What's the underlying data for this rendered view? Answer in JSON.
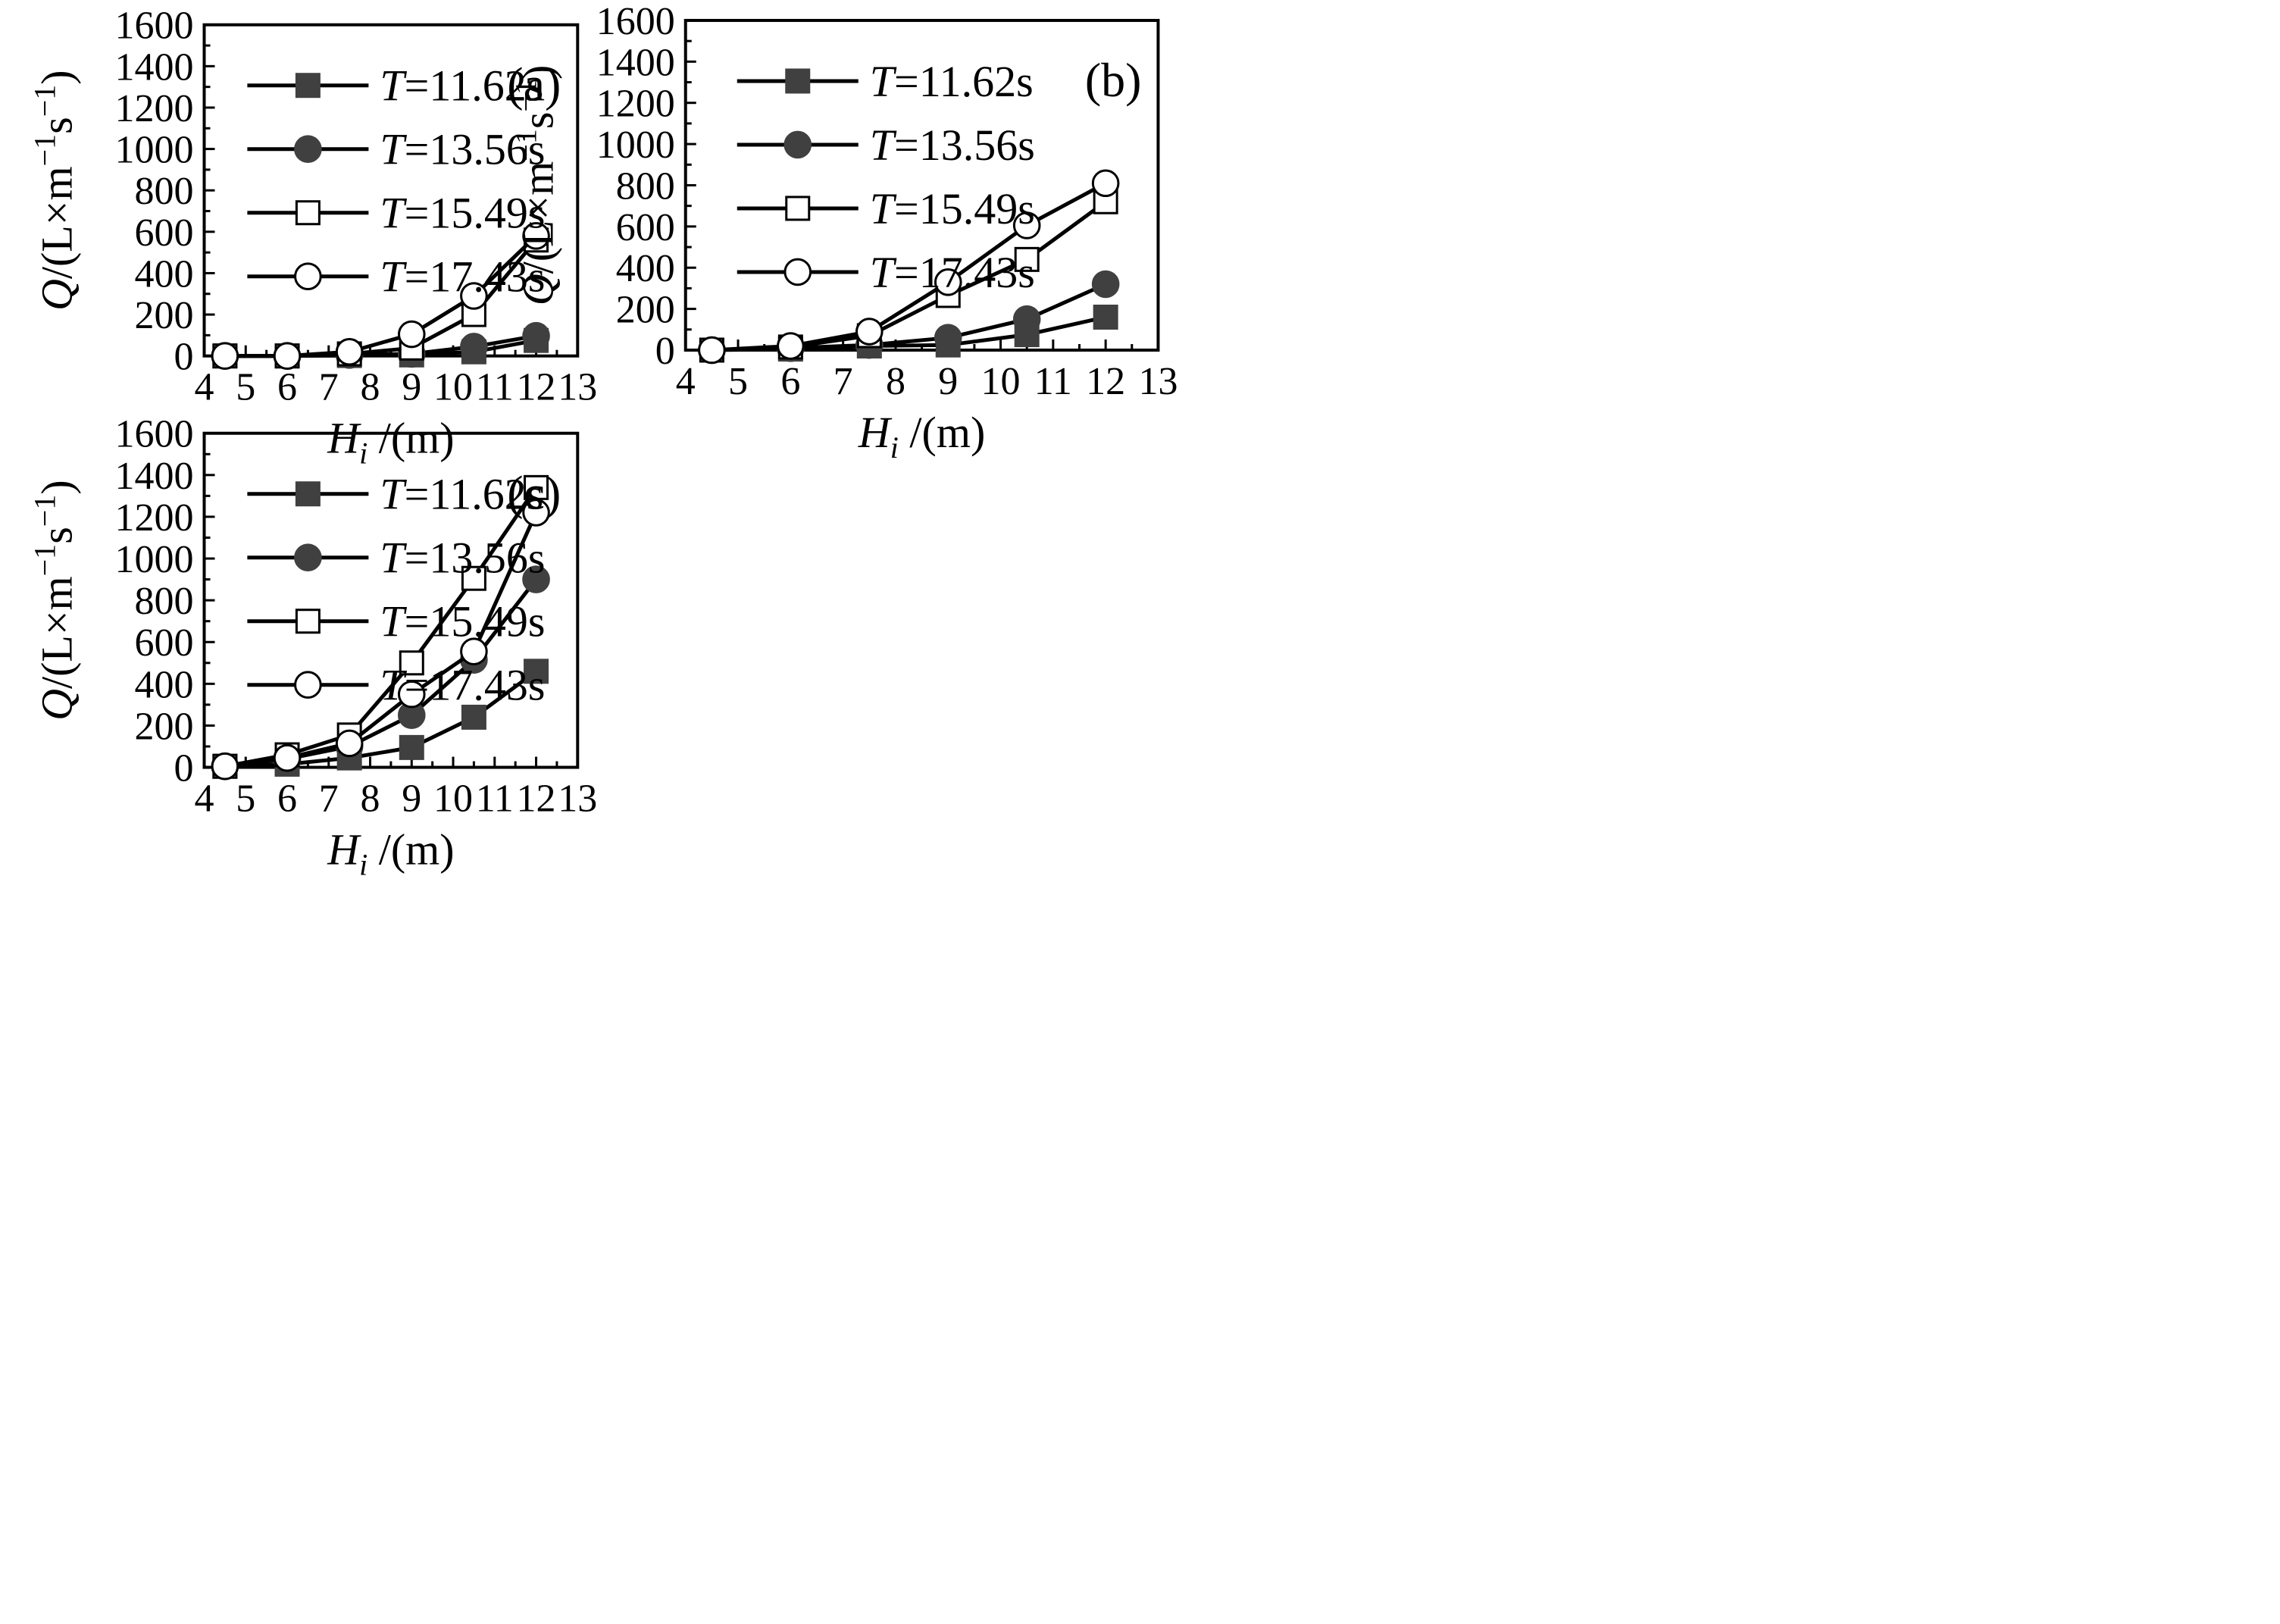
{
  "chart_data": [
    {
      "type": "line",
      "panel_label": "(a)",
      "x": [
        4.5,
        6,
        7.5,
        9,
        10.5,
        12
      ],
      "xlim": [
        4,
        13
      ],
      "xticks": [
        "4",
        "5",
        "6",
        "7",
        "8",
        "9",
        "10",
        "11",
        "12",
        "13"
      ],
      "ylim": [
        0,
        1600
      ],
      "yticks": [
        "0",
        "200",
        "400",
        "600",
        "800",
        "1000",
        "1200",
        "1400",
        "1600"
      ],
      "xlabel": {
        "var": "H",
        "sub": "i",
        "unit": " /(m)"
      },
      "ylabel": {
        "var": "Q",
        "unit": "/(L×m",
        "exp1": "−1",
        "mid": "s",
        "exp2": "−1",
        "close": ")"
      },
      "legend_position": "top-left",
      "series": [
        {
          "name": "T=11.62s",
          "var": "T",
          "rest": "=11.62s",
          "marker": "square-filled",
          "values": [
            0,
            0,
            2,
            5,
            20,
            75
          ]
        },
        {
          "name": "T=13.56s",
          "var": "T",
          "rest": "=13.56s",
          "marker": "circle-filled",
          "values": [
            0,
            0,
            5,
            10,
            45,
            97
          ]
        },
        {
          "name": "T=15.49s",
          "var": "T",
          "rest": "=15.49s",
          "marker": "square-open",
          "values": [
            0,
            0,
            10,
            38,
            200,
            560
          ]
        },
        {
          "name": "T=17.43s",
          "var": "T",
          "rest": "=17.43s",
          "marker": "circle-open",
          "values": [
            0,
            0,
            20,
            105,
            290,
            580
          ]
        }
      ]
    },
    {
      "type": "line",
      "panel_label": "(b)",
      "x": [
        4.5,
        6,
        7.5,
        9,
        10.5,
        12
      ],
      "xlim": [
        4,
        13
      ],
      "xticks": [
        "4",
        "5",
        "6",
        "7",
        "8",
        "9",
        "10",
        "11",
        "12",
        "13"
      ],
      "ylim": [
        0,
        1600
      ],
      "yticks": [
        "0",
        "200",
        "400",
        "600",
        "800",
        "1000",
        "1200",
        "1400",
        "1600"
      ],
      "xlabel": {
        "var": "H",
        "sub": "i",
        "unit": " /(m)"
      },
      "ylabel": {
        "var": "Q",
        "unit": "/(L×m",
        "exp1": "−1",
        "mid": "s",
        "exp2": "−1",
        "close": ")"
      },
      "legend_position": "top-left",
      "series": [
        {
          "name": "T=11.62s",
          "var": "T",
          "rest": "=11.62s",
          "marker": "square-filled",
          "values": [
            0,
            5,
            20,
            25,
            75,
            160
          ]
        },
        {
          "name": "T=13.56s",
          "var": "T",
          "rest": "=13.56s",
          "marker": "circle-filled",
          "values": [
            0,
            10,
            25,
            60,
            150,
            320
          ]
        },
        {
          "name": "T=15.49s",
          "var": "T",
          "rest": "=15.49s",
          "marker": "square-open",
          "values": [
            0,
            15,
            70,
            265,
            440,
            720
          ]
        },
        {
          "name": "T=17.43s",
          "var": "T",
          "rest": "=17.43s",
          "marker": "circle-open",
          "values": [
            0,
            20,
            90,
            330,
            605,
            810
          ]
        }
      ]
    },
    {
      "type": "line",
      "panel_label": "(c)",
      "x": [
        4.5,
        6,
        7.5,
        9,
        10.5,
        12
      ],
      "xlim": [
        4,
        13
      ],
      "xticks": [
        "4",
        "5",
        "6",
        "7",
        "8",
        "9",
        "10",
        "11",
        "12",
        "13"
      ],
      "ylim": [
        0,
        1600
      ],
      "yticks": [
        "0",
        "200",
        "400",
        "600",
        "800",
        "1000",
        "1200",
        "1400",
        "1600"
      ],
      "xlabel": {
        "var": "H",
        "sub": "i",
        "unit": " /(m)"
      },
      "ylabel": {
        "var": "Q",
        "unit": "/(L×m",
        "exp1": "−1",
        "mid": "s",
        "exp2": "−1",
        "close": ")"
      },
      "legend_position": "top-left",
      "series": [
        {
          "name": "T=11.62s",
          "var": "T",
          "rest": "=11.62s",
          "marker": "square-filled",
          "values": [
            5,
            15,
            45,
            95,
            240,
            460
          ]
        },
        {
          "name": "T=13.56s",
          "var": "T",
          "rest": "=13.56s",
          "marker": "circle-filled",
          "values": [
            5,
            40,
            100,
            250,
            515,
            900
          ]
        },
        {
          "name": "T=15.49s",
          "var": "T",
          "rest": "=15.49s",
          "marker": "square-open",
          "values": [
            5,
            60,
            155,
            500,
            905,
            1340
          ]
        },
        {
          "name": "T=17.43s",
          "var": "T",
          "rest": "=17.43s",
          "marker": "circle-open",
          "values": [
            5,
            45,
            115,
            350,
            555,
            1220
          ]
        }
      ]
    }
  ]
}
